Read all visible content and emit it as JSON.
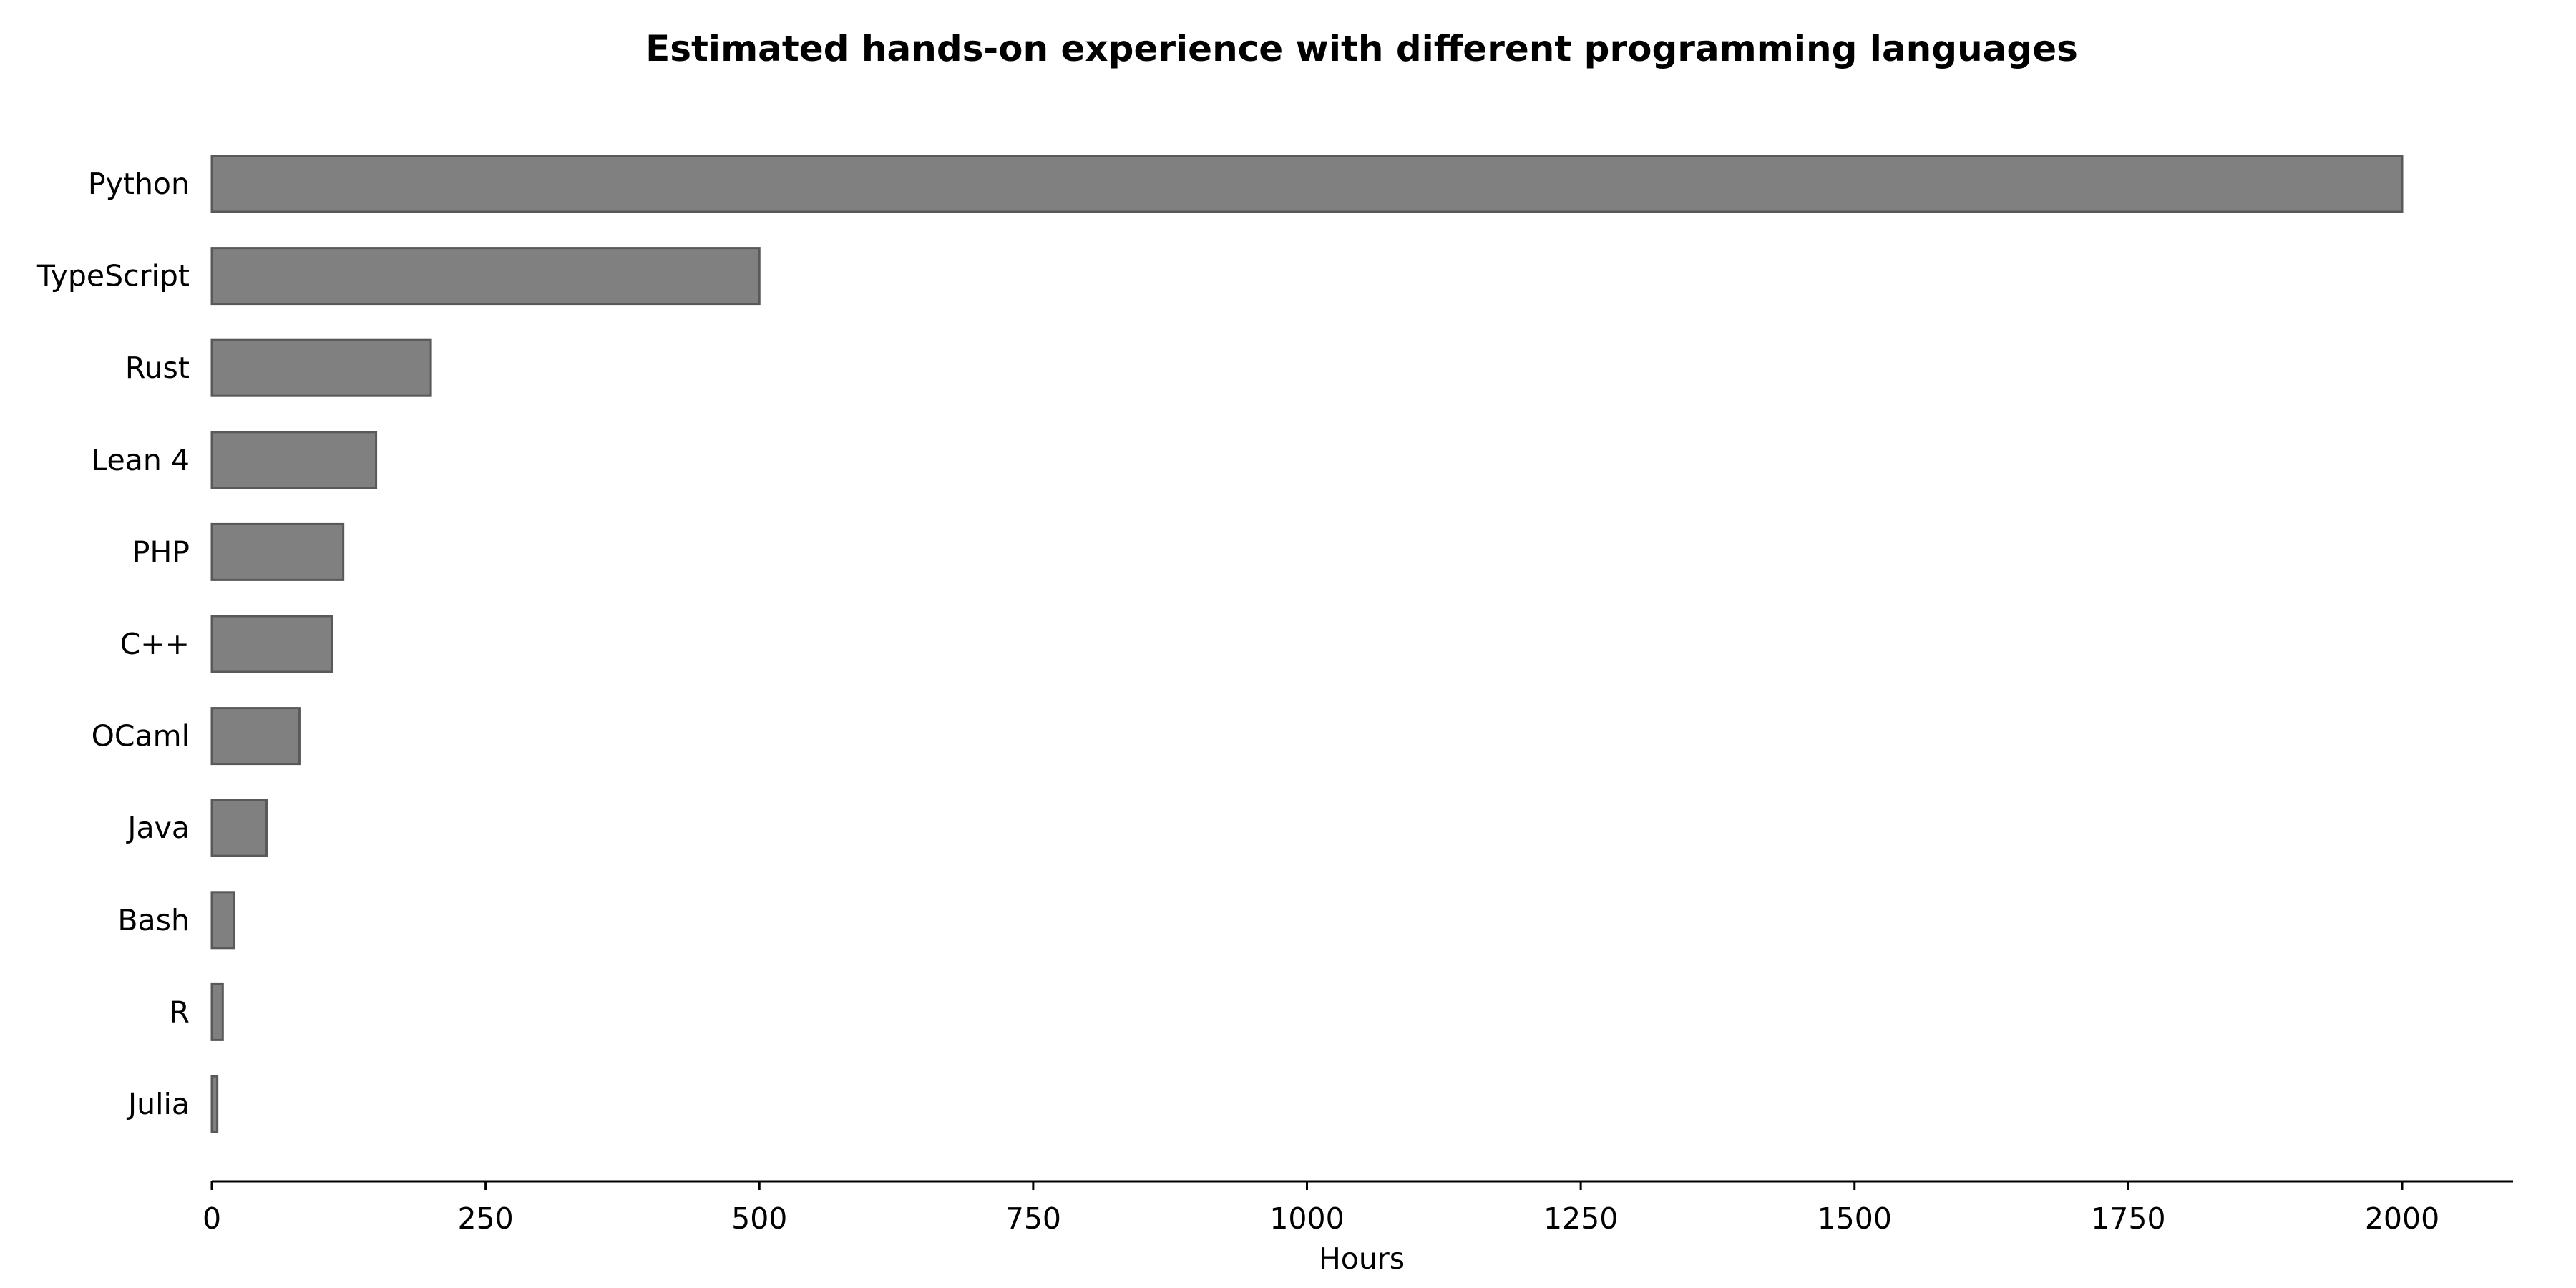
{
  "chart_data": {
    "type": "bar",
    "orientation": "horizontal",
    "title": "Estimated hands-on experience with different programming languages",
    "xlabel": "Hours",
    "ylabel": "",
    "categories": [
      "Python",
      "TypeScript",
      "Rust",
      "Lean 4",
      "PHP",
      "C++",
      "OCaml",
      "Java",
      "Bash",
      "R",
      "Julia"
    ],
    "values": [
      2000,
      500,
      200,
      150,
      120,
      110,
      80,
      50,
      20,
      10,
      5
    ],
    "xlim": [
      0,
      2100
    ],
    "xticks": [
      0,
      250,
      500,
      750,
      1000,
      1250,
      1500,
      1750,
      2000
    ],
    "xtick_labels": [
      "0",
      "250",
      "500",
      "750",
      "1000",
      "1250",
      "1500",
      "1750",
      "2000"
    ],
    "grid": false,
    "legend": "none",
    "colors": {
      "bar_fill": "#808080",
      "bar_edge": "#595959",
      "axis": "#000000"
    }
  }
}
